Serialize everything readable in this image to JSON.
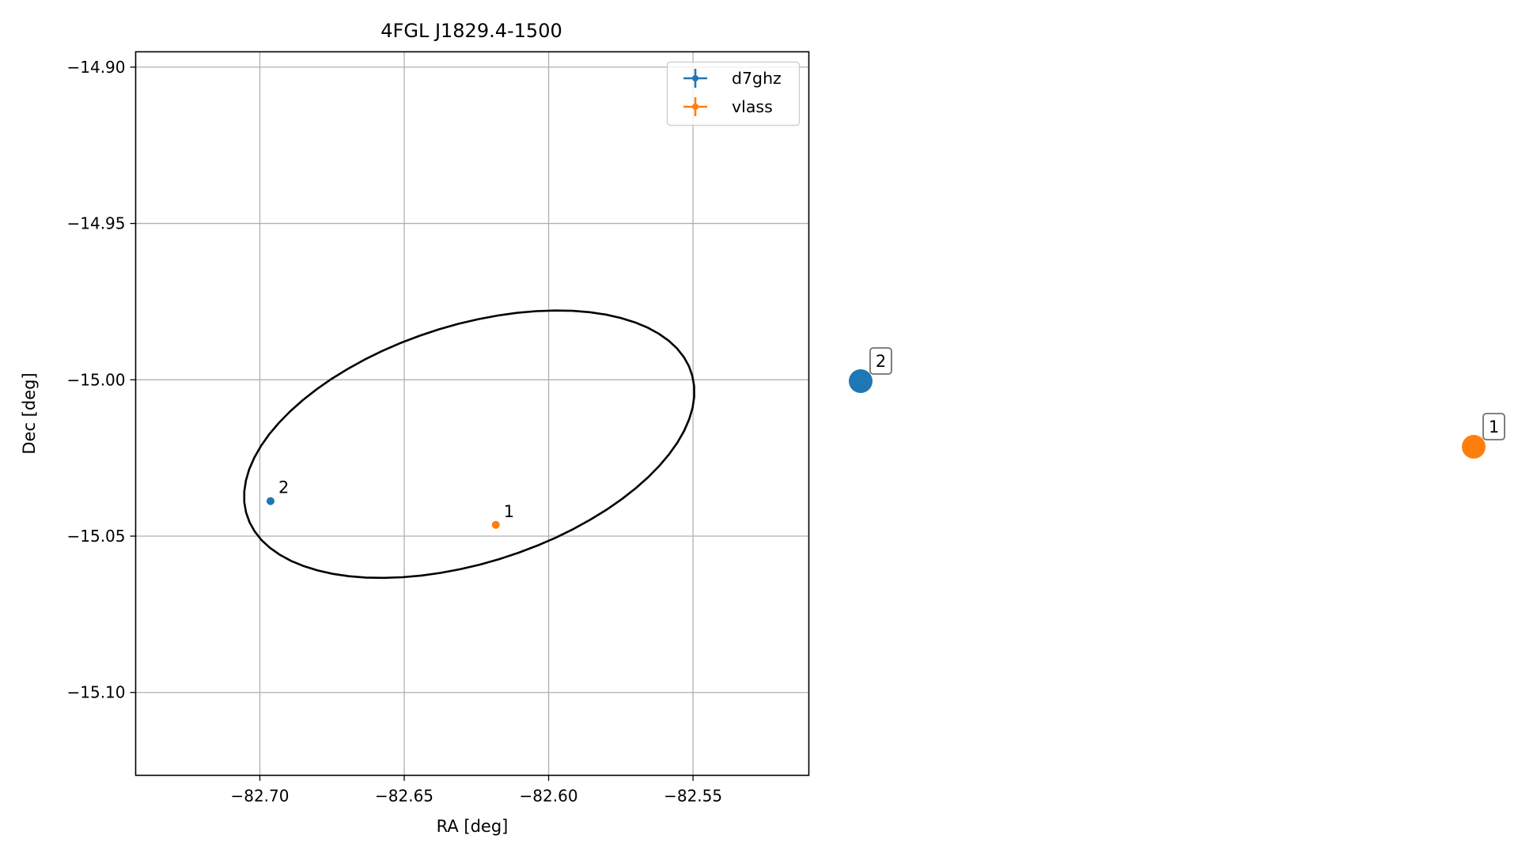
{
  "chart_data": {
    "type": "scatter",
    "title": "4FGL J1829.4-1500",
    "xlabel": "RA [deg]",
    "ylabel": "Dec [deg]",
    "xlim": [
      -82.743,
      -82.5099
    ],
    "ylim": [
      -15.1265,
      -14.8951
    ],
    "x_ticks": [
      -82.7,
      -82.65,
      -82.6,
      -82.55
    ],
    "x_tick_labels": [
      "−82.70",
      "−82.65",
      "−82.60",
      "−82.55"
    ],
    "y_ticks": [
      -14.9,
      -14.95,
      -15.0,
      -15.05,
      -15.1
    ],
    "y_tick_labels": [
      "−14.90",
      "−14.95",
      "−15.00",
      "−15.05",
      "−15.10"
    ],
    "grid": true,
    "legend_position": "top-right",
    "series": [
      {
        "name": "d7ghz",
        "color": "#1f77b4",
        "points": [
          {
            "x": -82.6963,
            "y": -15.0388,
            "label": "2"
          }
        ]
      },
      {
        "name": "vlass",
        "color": "#ff7f0e",
        "points": [
          {
            "x": -82.6183,
            "y": -15.0464,
            "label": "1"
          }
        ]
      }
    ],
    "ellipse": {
      "center": [
        -82.6275,
        -15.0206
      ],
      "semi_axes": [
        0.0803,
        0.0382
      ],
      "angle_deg": 15.8,
      "color": "#000000"
    },
    "outside_markers": [
      {
        "label": "2",
        "color": "#1f77b4"
      },
      {
        "label": "1",
        "color": "#ff7f0e"
      }
    ]
  }
}
